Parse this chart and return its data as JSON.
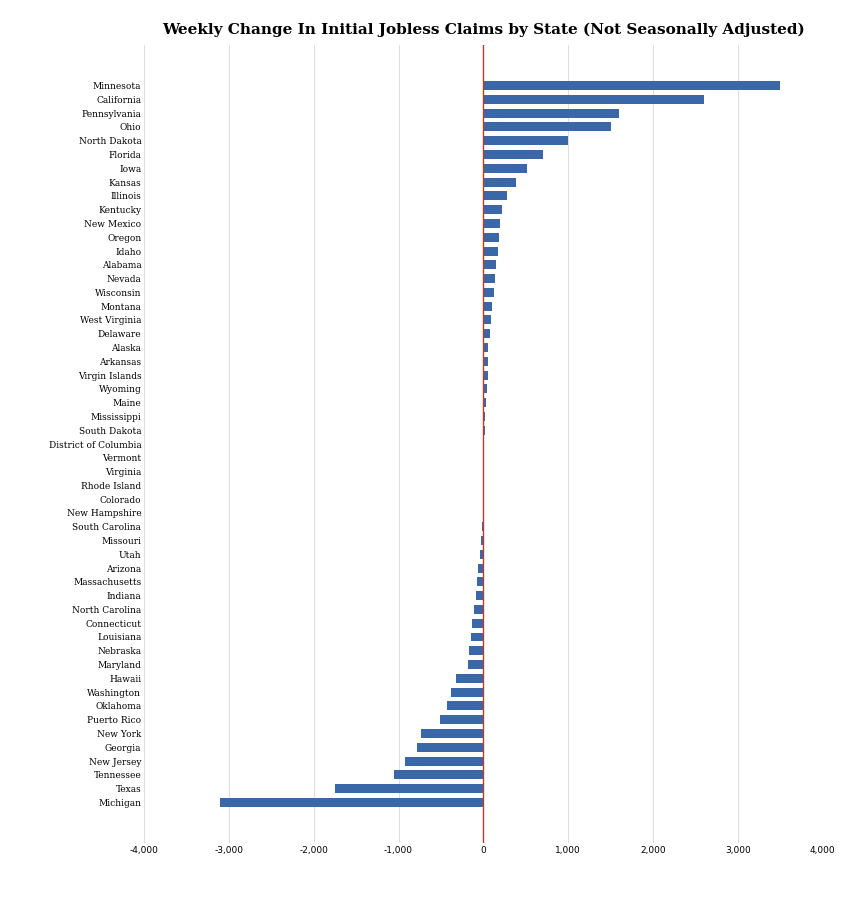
{
  "title": "Weekly Change In Initial Jobless Claims by State (Not Seasonally Adjusted)",
  "states": [
    "Minnesota",
    "California",
    "Pennsylvania",
    "Ohio",
    "North Dakota",
    "Florida",
    "Iowa",
    "Kansas",
    "Illinois",
    "Kentucky",
    "New Mexico",
    "Oregon",
    "Idaho",
    "Alabama",
    "Nevada",
    "Wisconsin",
    "Montana",
    "West Virginia",
    "Delaware",
    "Alaska",
    "Arkansas",
    "Virgin Islands",
    "Wyoming",
    "Maine",
    "Mississippi",
    "South Dakota",
    "District of Columbia",
    "Vermont",
    "Virginia",
    "Rhode Island",
    "Colorado",
    "New Hampshire",
    "South Carolina",
    "Missouri",
    "Utah",
    "Arizona",
    "Massachusetts",
    "Indiana",
    "North Carolina",
    "Connecticut",
    "Louisiana",
    "Nebraska",
    "Maryland",
    "Hawaii",
    "Washington",
    "Oklahoma",
    "Puerto Rico",
    "New York",
    "Georgia",
    "New Jersey",
    "Tennessee",
    "Texas",
    "Michigan"
  ],
  "values": [
    3500,
    2600,
    1600,
    1500,
    1000,
    700,
    520,
    380,
    280,
    220,
    200,
    190,
    175,
    150,
    140,
    120,
    105,
    90,
    80,
    50,
    60,
    50,
    40,
    35,
    25,
    18,
    12,
    8,
    5,
    3,
    -3,
    -8,
    -12,
    -30,
    -45,
    -60,
    -75,
    -90,
    -110,
    -130,
    -150,
    -165,
    -185,
    -320,
    -380,
    -430,
    -510,
    -730,
    -780,
    -920,
    -1050,
    -1750,
    -3100
  ],
  "bar_color": "#3a67a8",
  "zero_line_color": "#c0392b",
  "background_color": "#ffffff",
  "xlim": [
    -4000,
    4000
  ],
  "xticks": [
    -4000,
    -3000,
    -2000,
    -1000,
    0,
    1000,
    2000,
    3000,
    4000
  ],
  "title_fontsize": 11,
  "label_fontsize": 6.5
}
